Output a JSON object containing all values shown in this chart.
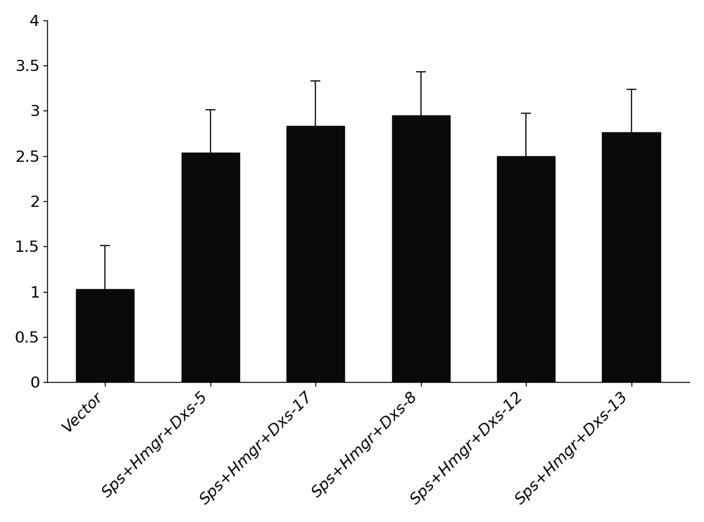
{
  "categories": [
    "Vector",
    "Sps+Hmgr+Dxs-5",
    "Sps+Hmgr+Dxs-17",
    "Sps+Hmgr+Dxs-8",
    "Sps+Hmgr+Dxs-12",
    "Sps+Hmgr+Dxs-13"
  ],
  "values": [
    1.03,
    2.54,
    2.83,
    2.95,
    2.5,
    2.76
  ],
  "errors": [
    0.48,
    0.47,
    0.5,
    0.48,
    0.47,
    0.48
  ],
  "bar_color": "#0a0a0a",
  "edge_color": "#0a0a0a",
  "bar_width": 0.55,
  "ylim": [
    0,
    4.0
  ],
  "yticks": [
    0,
    0.5,
    1.0,
    1.5,
    2.0,
    2.5,
    3.0,
    3.5,
    4.0
  ],
  "background_color": "#ffffff",
  "tick_label_fontsize": 16,
  "axis_label_fontsize": 14,
  "capsize": 5,
  "elinewidth": 1.2,
  "ecapthick": 1.2
}
